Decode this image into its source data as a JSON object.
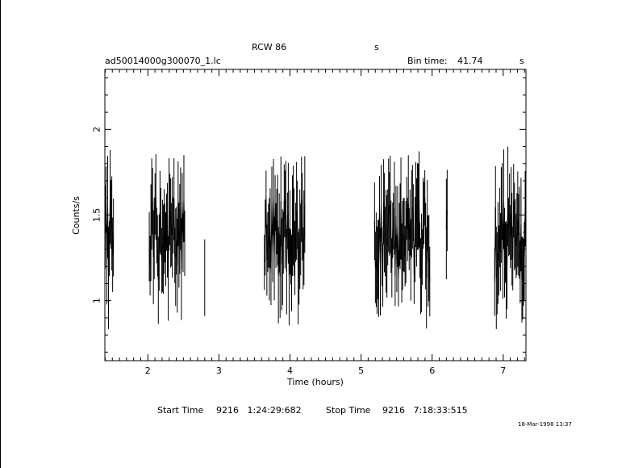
{
  "chart_data": {
    "type": "line",
    "source": "RCW 86",
    "header_s": "s",
    "filename": "ad50014000g300070_1.lc",
    "bin_time_label": "Bin time:",
    "bin_time_value": "41.74",
    "bin_time_unit": "s",
    "xlabel": "Time (hours)",
    "ylabel": "Counts/s",
    "xlim": [
      1.395,
      7.32
    ],
    "ylim": [
      0.65,
      2.35
    ],
    "xticks": [
      2,
      3,
      4,
      5,
      6,
      7
    ],
    "yticks": [
      1,
      1.5,
      2
    ],
    "ytick_labels": [
      "1",
      "1.5",
      "2"
    ],
    "start_label": "Start Time",
    "start_value": "9216   1:24:29:682",
    "stop_label": "Stop Time",
    "stop_value": "9216   7:18:33:515",
    "date_stamp": "18-Mar-1998 13:37",
    "segments": [
      {
        "t_start": 1.4,
        "t_end": 1.52
      },
      {
        "t_start": 2.02,
        "t_end": 2.52
      },
      {
        "t_start": 2.8,
        "t_end": 2.81
      },
      {
        "t_start": 3.64,
        "t_end": 4.21
      },
      {
        "t_start": 5.19,
        "t_end": 5.97
      },
      {
        "t_start": 6.2,
        "t_end": 6.22
      },
      {
        "t_start": 6.88,
        "t_end": 7.31
      }
    ]
  }
}
